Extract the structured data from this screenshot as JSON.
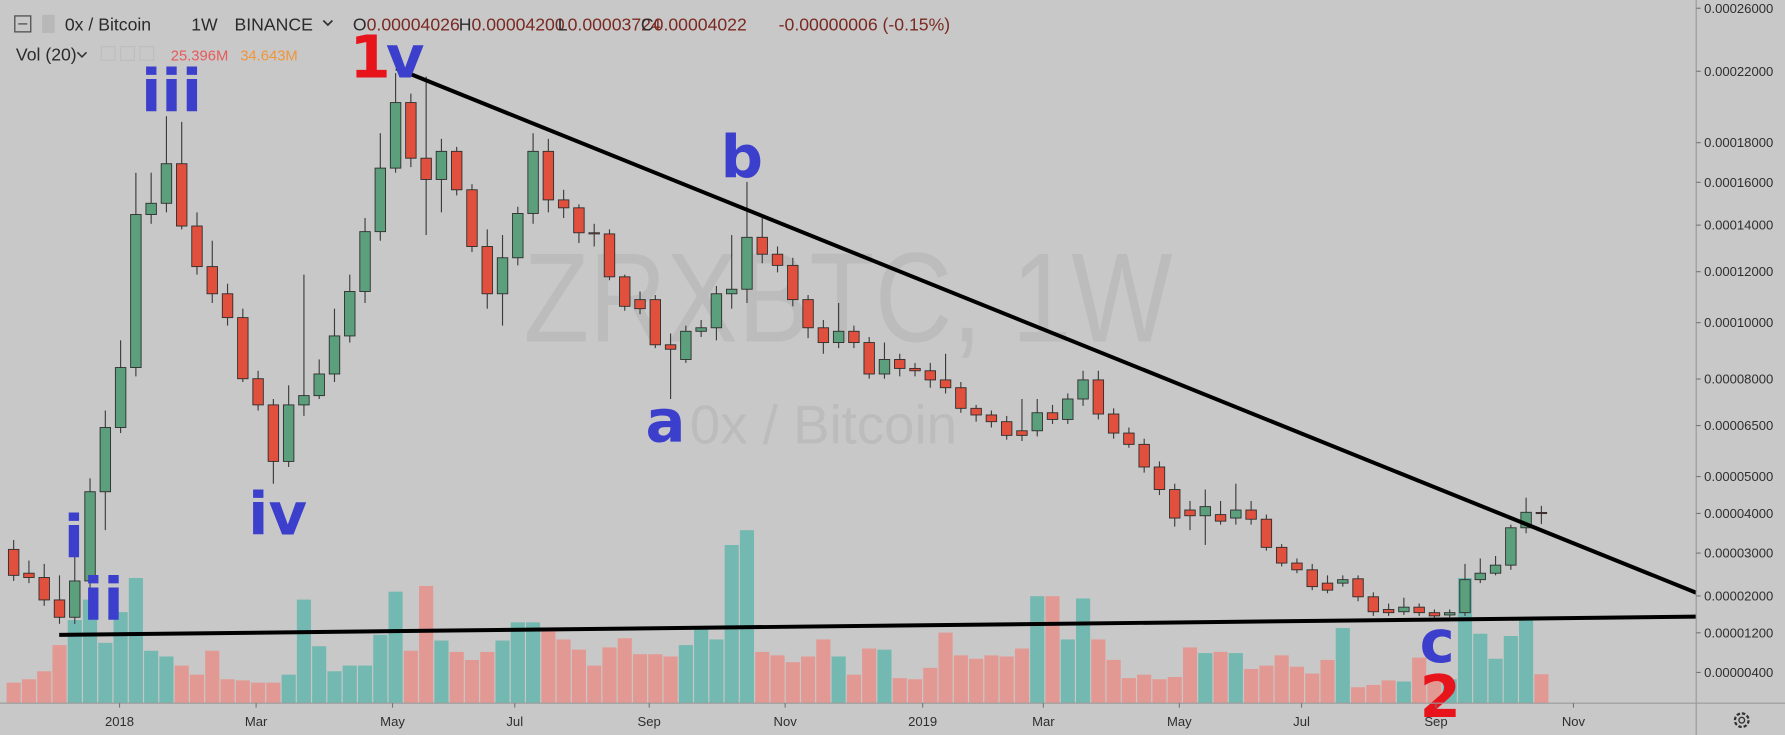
{
  "header": {
    "symbol": "0x / Bitcoin",
    "interval": "1W",
    "exchange": "BINANCE",
    "ohlc": [
      {
        "label": "O",
        "value": "0.00004026"
      },
      {
        "label": "H",
        "value": "0.00004200"
      },
      {
        "label": "L",
        "value": "0.00003724"
      },
      {
        "label": "C",
        "value": "0.00004022"
      }
    ],
    "change": "-0.00000006 (-0.15%)",
    "volume_indicator": "Vol (20)",
    "volume_value": "25.396M",
    "volume_ma": "34.643M"
  },
  "chart_data": {
    "type": "candlestick",
    "watermark": {
      "title": "ZRXBTC, 1W",
      "subtitle": "0x / Bitcoin"
    },
    "open": [
      3.09e-05,
      2.52e-05,
      2.42e-05,
      1.91e-05,
      1.53e-05,
      2.34e-05,
      4.58e-05,
      6.44e-05,
      8.39e-05,
      0.0001448,
      0.00015,
      0.0001692,
      0.0001396,
      0.0001221,
      0.0001111,
      0.0001019,
      8.01e-05,
      7.15e-05,
      5.43e-05,
      7.15e-05,
      7.45e-05,
      8.17e-05,
      9.51e-05,
      0.000112,
      0.0001371,
      0.000167,
      0.0002018,
      0.000172,
      0.0001614,
      0.0001755,
      0.0001564,
      0.0001306,
      0.0001111,
      0.0001258,
      0.0001453,
      0.0001755,
      0.0001516,
      0.0001479,
      0.0001366,
      0.0001361,
      0.0001179,
      0.0001088,
      0.0001088,
      9.19e-05,
      8.67e-05,
      9.68e-05,
      9.81e-05,
      0.0001111,
      0.0001129,
      0.0001346,
      0.0001273,
      0.0001226,
      0.0001088,
      9.81e-05,
      9.27e-05,
      9.68e-05,
      9.27e-05,
      8.17e-05,
      8.67e-05,
      8.36e-05,
      8.28e-05,
      7.97e-05,
      7.71e-05,
      7.04e-05,
      6.83e-05,
      6.62e-05,
      6.34e-05,
      6.34e-05,
      6.9e-05,
      6.69e-05,
      7.34e-05,
      7.97e-05,
      6.86e-05,
      6.27e-05,
      5.93e-05,
      5.27e-05,
      4.64e-05,
      4.09e-05,
      3.94e-05,
      3.97e-05,
      3.88e-05,
      4.09e-05,
      3.85e-05,
      3.14e-05,
      2.76e-05,
      2.6e-05,
      2.29e-05,
      2.29e-05,
      2.39e-05,
      1.98e-05,
      1.7e-05,
      1.65e-05,
      1.75e-05,
      1.63e-05,
      1.58e-05,
      1.63e-05,
      2.37e-05,
      2.52e-05,
      2.71e-05,
      3.63e-05,
      4.026e-05
    ],
    "high": [
      3.32e-05,
      2.82e-05,
      2.74e-05,
      2.47e-05,
      3.57e-05,
      4.95e-05,
      6.97e-05,
      9.35e-05,
      0.0001647,
      0.0001647,
      0.0001942,
      0.0001911,
      0.0001458,
      0.0001331,
      0.0001151,
      0.0001053,
      8.28e-05,
      7.34e-05,
      7.79e-05,
      0.0001188,
      8.67e-05,
      0.0001053,
      0.0001188,
      0.0001432,
      0.000185,
      0.0002189,
      0.0002069,
      0.0002168,
      0.000182,
      0.0001778,
      0.0001591,
      0.0001381,
      0.0001356,
      0.0001484,
      0.000185,
      0.000182,
      0.0001564,
      0.0001495,
      0.0001406,
      0.0001381,
      0.0001188,
      0.000112,
      0.0001106,
      9.6e-05,
      9.89e-05,
      0.000101,
      0.0001142,
      0.0001356,
      0.0001602,
      0.0001432,
      0.0001306,
      0.0001258,
      0.0001106,
      0.000101,
      0.0001075,
      9.89e-05,
      9.47e-05,
      9.27e-05,
      8.87e-05,
      8.55e-05,
      8.55e-05,
      8.87e-05,
      7.9e-05,
      7.15e-05,
      6.97e-05,
      6.8e-05,
      7.34e-05,
      7.34e-05,
      7.15e-05,
      7.52e-05,
      8.28e-05,
      8.28e-05,
      7.04e-05,
      6.44e-05,
      6.1e-05,
      5.43e-05,
      4.8e-05,
      4.33e-05,
      4.64e-05,
      4.33e-05,
      4.8e-05,
      4.33e-05,
      3.97e-05,
      3.22e-05,
      2.87e-05,
      2.74e-05,
      2.47e-05,
      2.47e-05,
      2.47e-05,
      2.08e-05,
      1.83e-05,
      1.96e-05,
      1.83e-05,
      1.7e-05,
      1.7e-05,
      2.74e-05,
      2.87e-05,
      2.93e-05,
      3.71e-05,
      4.42e-05,
      4.2e-05
    ],
    "low": [
      2.34e-05,
      2.29e-05,
      1.78e-05,
      1.39e-05,
      1.39e-05,
      2.08e-05,
      3.57e-05,
      6.27e-05,
      8.09e-05,
      0.0001406,
      0.0001458,
      0.0001381,
      0.0001188,
      0.0001075,
      9.89e-05,
      7.9e-05,
      6.97e-05,
      4.8e-05,
      5.27e-05,
      6.8e-05,
      7.34e-05,
      7.9e-05,
      9.27e-05,
      0.0001075,
      0.0001331,
      0.0001647,
      0.0001675,
      0.0001356,
      0.0001458,
      0.0001537,
      0.0001282,
      0.0001053,
      9.89e-05,
      0.0001226,
      0.0001406,
      0.0001458,
      0.0001432,
      0.0001321,
      0.0001306,
      0.0001165,
      0.0001045,
      0.0001032,
      9.07e-05,
      7.34e-05,
      8.55e-05,
      9.47e-05,
      9.35e-05,
      0.0001053,
      0.0001075,
      0.0001235,
      0.0001197,
      0.0001062,
      9.43e-05,
      8.87e-05,
      9.07e-05,
      9.07e-05,
      8.01e-05,
      8.01e-05,
      8.09e-05,
      8.09e-05,
      7.71e-05,
      7.52e-05,
      6.9e-05,
      6.62e-05,
      6.44e-05,
      6.07e-05,
      6.03e-05,
      6.17e-05,
      6.55e-05,
      6.55e-05,
      7.12e-05,
      6.69e-05,
      6.1e-05,
      5.83e-05,
      5.11e-05,
      4.49e-05,
      3.66e-05,
      3.57e-05,
      3.2e-05,
      3.71e-05,
      3.71e-05,
      3.71e-05,
      3.06e-05,
      2.68e-05,
      2.52e-05,
      2.13e-05,
      2.06e-05,
      2.21e-05,
      1.88e-05,
      1.56e-05,
      1.56e-05,
      1.58e-05,
      1.56e-05,
      1.49e-05,
      1.53e-05,
      1.56e-05,
      2.29e-05,
      2.47e-05,
      2.6e-05,
      3.49e-05,
      3.724e-05
    ],
    "close": [
      2.47e-05,
      2.42e-05,
      1.91e-05,
      1.53e-05,
      2.34e-05,
      4.58e-05,
      6.44e-05,
      8.39e-05,
      0.0001448,
      0.00015,
      0.0001692,
      0.0001396,
      0.0001221,
      0.0001111,
      0.0001019,
      8.01e-05,
      7.15e-05,
      5.43e-05,
      7.15e-05,
      7.45e-05,
      8.17e-05,
      9.51e-05,
      0.000112,
      0.0001371,
      0.000167,
      0.0002018,
      0.000172,
      0.0001614,
      0.0001755,
      0.0001564,
      0.0001306,
      0.0001111,
      0.0001258,
      0.0001453,
      0.0001755,
      0.0001516,
      0.0001479,
      0.0001366,
      0.0001361,
      0.0001179,
      0.0001062,
      0.0001053,
      9.19e-05,
      9.03e-05,
      9.68e-05,
      9.81e-05,
      0.0001111,
      0.0001129,
      0.0001346,
      0.0001273,
      0.0001226,
      0.0001088,
      9.81e-05,
      9.27e-05,
      9.68e-05,
      9.27e-05,
      8.17e-05,
      8.67e-05,
      8.36e-05,
      8.28e-05,
      7.97e-05,
      7.71e-05,
      7.04e-05,
      6.83e-05,
      6.62e-05,
      6.2e-05,
      6.2e-05,
      6.9e-05,
      6.69e-05,
      7.34e-05,
      7.97e-05,
      6.86e-05,
      6.27e-05,
      5.93e-05,
      5.27e-05,
      4.64e-05,
      3.88e-05,
      3.94e-05,
      4.18e-05,
      3.8e-05,
      4.09e-05,
      3.85e-05,
      3.14e-05,
      2.76e-05,
      2.6e-05,
      2.21e-05,
      2.13e-05,
      2.37e-05,
      1.98e-05,
      1.65e-05,
      1.63e-05,
      1.75e-05,
      1.63e-05,
      1.56e-05,
      1.63e-05,
      2.37e-05,
      2.52e-05,
      2.71e-05,
      3.63e-05,
      4.03e-05,
      4.022e-05
    ],
    "volume": [
      18,
      21,
      28,
      51,
      73,
      91,
      53,
      80,
      110,
      46,
      41,
      33,
      25,
      46,
      21,
      20,
      18,
      18,
      25,
      91,
      50,
      28,
      33,
      33,
      60,
      98,
      46,
      103,
      55,
      45,
      38,
      45,
      55,
      71,
      71,
      66,
      56,
      47,
      33,
      49,
      57,
      43,
      43,
      41,
      51,
      67,
      56,
      139,
      152,
      45,
      42,
      36,
      41,
      56,
      41,
      25,
      48,
      47,
      22,
      21,
      31,
      62,
      42,
      39,
      42,
      41,
      48,
      94,
      94,
      56,
      92,
      56,
      38,
      22,
      25,
      21,
      23,
      49,
      44,
      45,
      44,
      30,
      33,
      42,
      32,
      26,
      38,
      66,
      14,
      16,
      20,
      19,
      40,
      21,
      21,
      110,
      61,
      39,
      59,
      74,
      25.396
    ],
    "up_color": "#5c9f7c",
    "down_color": "#e0503d",
    "volume_up_color": "#73b8b1",
    "volume_down_color": "#e39993",
    "log_scale": true,
    "grid": false,
    "ylim": [
      -1.8e-06,
      0.0002656
    ],
    "yticks": [
      {
        "value": 0.00026,
        "label": "0.00026000"
      },
      {
        "value": 0.00022,
        "label": "0.00022000"
      },
      {
        "value": 0.00018,
        "label": "0.00018000"
      },
      {
        "value": 0.00016,
        "label": "0.00016000"
      },
      {
        "value": 0.00014,
        "label": "0.00014000"
      },
      {
        "value": 0.00012,
        "label": "0.00012000"
      },
      {
        "value": 0.0001,
        "label": "0.00010000"
      },
      {
        "value": 8e-05,
        "label": "0.00008000"
      },
      {
        "value": 6.5e-05,
        "label": "0.00006500"
      },
      {
        "value": 5e-05,
        "label": "0.00005000"
      },
      {
        "value": 4e-05,
        "label": "0.00004000"
      },
      {
        "value": 3e-05,
        "label": "0.00003000"
      },
      {
        "value": 2e-05,
        "label": "0.00002000"
      },
      {
        "value": 1.2e-05,
        "label": "0.00001200"
      },
      {
        "value": 4e-06,
        "label": "0.00000400"
      }
    ],
    "xticks": [
      {
        "value": 6.93,
        "label": "2018"
      },
      {
        "value": 15.87,
        "label": "Mar"
      },
      {
        "value": 24.8,
        "label": "May"
      },
      {
        "value": 32.8,
        "label": "Jul"
      },
      {
        "value": 41.6,
        "label": "Sep"
      },
      {
        "value": 50.5,
        "label": "Nov"
      },
      {
        "value": 59.5,
        "label": "2019"
      },
      {
        "value": 67.4,
        "label": "Mar"
      },
      {
        "value": 76.3,
        "label": "May"
      },
      {
        "value": 84.3,
        "label": "Jul"
      },
      {
        "value": 93.1,
        "label": "Sep"
      },
      {
        "value": 102.1,
        "label": "Nov"
      }
    ],
    "annotations": [
      {
        "text": "1",
        "color": "#e8141c"
      },
      {
        "text": "v",
        "color": "#3b3fcc"
      },
      {
        "text": "iii",
        "color": "#3b3fcc"
      },
      {
        "text": "iv",
        "color": "#3b3fcc"
      },
      {
        "text": "i",
        "color": "#3b3fcc"
      },
      {
        "text": "ii",
        "color": "#3b3fcc"
      },
      {
        "text": "a",
        "color": "#3b3fcc"
      },
      {
        "text": "b",
        "color": "#3b3fcc"
      },
      {
        "text": "c",
        "color": "#3b3fcc"
      },
      {
        "text": "2",
        "color": "#e8141c"
      }
    ]
  }
}
